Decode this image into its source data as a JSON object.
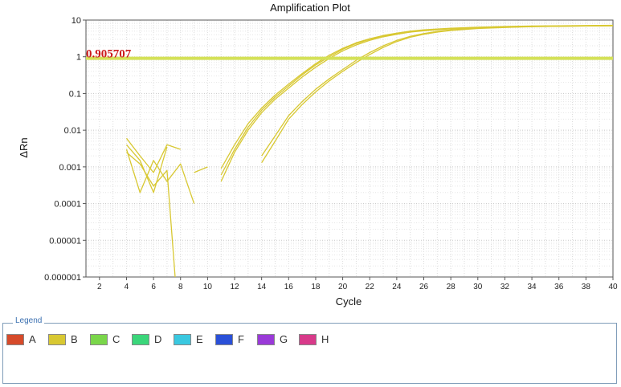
{
  "chart_data": {
    "type": "line",
    "title": "Amplification Plot",
    "xlabel": "Cycle",
    "ylabel": "ΔRn",
    "xlim": [
      1,
      40
    ],
    "ylim": [
      1e-06,
      10
    ],
    "yscale": "log",
    "grid": true,
    "x_ticks": [
      "2",
      "4",
      "6",
      "8",
      "10",
      "12",
      "14",
      "16",
      "18",
      "20",
      "22",
      "24",
      "26",
      "28",
      "30",
      "32",
      "34",
      "36",
      "38",
      "40"
    ],
    "y_ticks": [
      "10",
      "1",
      "0.1",
      "0.01",
      "0.001",
      "0.0001",
      "0.00001",
      "0.000001"
    ],
    "threshold": {
      "value": 0.905707,
      "label": "0.905707",
      "color": "#d4e157"
    },
    "line_color": "#d8c832",
    "series": [
      {
        "x": [
          11,
          12,
          13,
          14,
          15,
          16,
          17,
          18,
          19,
          20,
          21,
          22,
          23,
          24,
          25,
          26,
          28,
          30,
          32,
          34,
          36,
          38,
          40
        ],
        "values": [
          0.0009,
          0.004,
          0.015,
          0.04,
          0.09,
          0.18,
          0.35,
          0.65,
          1.1,
          1.7,
          2.4,
          3.1,
          3.8,
          4.4,
          5.0,
          5.4,
          6.0,
          6.4,
          6.7,
          6.9,
          7.0,
          7.1,
          7.2
        ]
      },
      {
        "x": [
          11,
          12,
          13,
          14,
          15,
          16,
          17,
          18,
          19,
          20,
          21,
          22,
          23,
          24,
          25,
          26,
          28,
          30,
          32,
          34,
          36,
          38,
          40
        ],
        "values": [
          0.0006,
          0.003,
          0.012,
          0.035,
          0.08,
          0.16,
          0.32,
          0.6,
          1.0,
          1.6,
          2.3,
          3.0,
          3.7,
          4.3,
          4.9,
          5.3,
          5.9,
          6.3,
          6.6,
          6.8,
          6.9,
          7.0,
          7.1
        ]
      },
      {
        "x": [
          11,
          12,
          13,
          14,
          15,
          16,
          17,
          18,
          19,
          20,
          21,
          22,
          23,
          24,
          25,
          26,
          28,
          30,
          32,
          34,
          36,
          38,
          40
        ],
        "values": [
          0.0004,
          0.0025,
          0.01,
          0.03,
          0.07,
          0.14,
          0.28,
          0.52,
          0.9,
          1.45,
          2.1,
          2.8,
          3.5,
          4.1,
          4.7,
          5.1,
          5.8,
          6.2,
          6.5,
          6.7,
          6.8,
          6.9,
          7.0
        ]
      },
      {
        "x": [
          14,
          15,
          16,
          17,
          18,
          19,
          20,
          21,
          22,
          23,
          24,
          25,
          26,
          27,
          28,
          30,
          32,
          34,
          36,
          38,
          40
        ],
        "values": [
          0.002,
          0.007,
          0.025,
          0.06,
          0.13,
          0.25,
          0.45,
          0.8,
          1.3,
          2.0,
          2.8,
          3.6,
          4.3,
          4.9,
          5.4,
          6.0,
          6.4,
          6.7,
          6.9,
          7.0,
          7.1
        ]
      },
      {
        "x": [
          14,
          15,
          16,
          17,
          18,
          19,
          20,
          21,
          22,
          23,
          24,
          25,
          26,
          27,
          28,
          30,
          32,
          34,
          36,
          38,
          40
        ],
        "values": [
          0.0013,
          0.005,
          0.02,
          0.05,
          0.11,
          0.22,
          0.4,
          0.7,
          1.15,
          1.8,
          2.6,
          3.4,
          4.1,
          4.7,
          5.2,
          5.9,
          6.3,
          6.6,
          6.8,
          6.9,
          7.0
        ]
      },
      {
        "x": [
          4,
          5,
          6,
          7,
          8
        ],
        "values": [
          0.006,
          0.002,
          0.0007,
          0.004,
          0.003
        ]
      },
      {
        "x": [
          4,
          5,
          6,
          7,
          8,
          9
        ],
        "values": [
          0.003,
          0.0002,
          0.0015,
          0.0004,
          0.0012,
          0.0001
        ]
      },
      {
        "x": [
          4,
          5,
          6,
          7,
          7.6
        ],
        "values": [
          0.0025,
          0.0012,
          0.0003,
          0.0008,
          1e-06
        ]
      },
      {
        "x": [
          4,
          5,
          6,
          7
        ],
        "values": [
          0.004,
          0.0015,
          0.0002,
          0.0035
        ]
      },
      {
        "x": [
          9,
          10
        ],
        "values": [
          0.0007,
          0.001
        ]
      }
    ]
  },
  "legend": {
    "title": "Legend",
    "items": [
      {
        "label": "A",
        "color": "#d64a2a"
      },
      {
        "label": "B",
        "color": "#d8c832"
      },
      {
        "label": "C",
        "color": "#7ad64a"
      },
      {
        "label": "D",
        "color": "#3ad67a"
      },
      {
        "label": "E",
        "color": "#3ac8e0"
      },
      {
        "label": "F",
        "color": "#2a50d8"
      },
      {
        "label": "G",
        "color": "#9a3ad8"
      },
      {
        "label": "H",
        "color": "#d83a8a"
      }
    ]
  }
}
